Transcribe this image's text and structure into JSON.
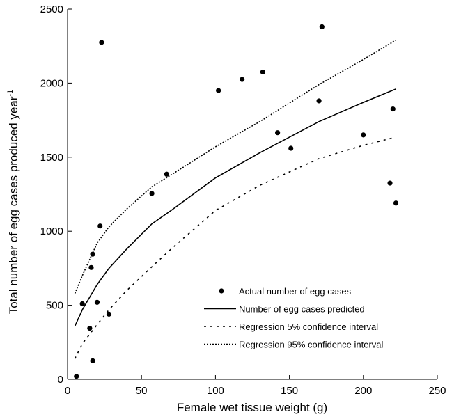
{
  "chart_data": {
    "type": "scatter",
    "xlabel": "Female wet tissue weight (g)",
    "ylabel": "Total number of egg cases produced year",
    "ylabel_superscript": "-1",
    "xlim": [
      0,
      250
    ],
    "xticks": [
      0,
      50,
      100,
      150,
      200,
      250
    ],
    "ylim": [
      0,
      2500
    ],
    "yticks": [
      0,
      500,
      1000,
      1500,
      2000,
      2500
    ],
    "grid": false,
    "legend": "lower right",
    "series": [
      {
        "name": "Actual number of egg cases",
        "color": "#000000",
        "mode": "markers",
        "x": [
          6,
          10,
          15,
          17,
          16,
          17,
          20,
          22,
          23,
          28,
          57,
          67,
          102,
          118,
          132,
          142,
          151,
          170,
          172,
          200,
          218,
          220,
          222
        ],
        "values": [
          20,
          510,
          345,
          125,
          755,
          845,
          520,
          1035,
          2275,
          440,
          1255,
          1385,
          1950,
          2025,
          2075,
          1665,
          1560,
          1880,
          2380,
          1650,
          1325,
          1825,
          1190
        ]
      },
      {
        "name": "Number of egg cases predicted",
        "color": "#000000",
        "mode": "lines",
        "dash": "solid",
        "x": [
          5,
          10,
          20,
          28,
          40,
          57,
          70,
          100,
          130,
          170,
          200,
          222
        ],
        "values": [
          360,
          470,
          640,
          750,
          880,
          1050,
          1140,
          1360,
          1530,
          1740,
          1870,
          1960
        ]
      },
      {
        "name": "Regression 5% confidence interval",
        "color": "#000000",
        "mode": "lines",
        "dash": "dashed",
        "x": [
          5,
          10,
          20,
          28,
          40,
          57,
          70,
          100,
          130,
          170,
          200,
          220
        ],
        "values": [
          140,
          240,
          370,
          470,
          600,
          760,
          880,
          1140,
          1310,
          1490,
          1580,
          1630
        ]
      },
      {
        "name": "Regression 95% confidence interval",
        "color": "#000000",
        "mode": "lines",
        "dash": "dotted",
        "x": [
          5,
          10,
          20,
          28,
          40,
          57,
          70,
          100,
          130,
          170,
          200,
          222
        ],
        "values": [
          580,
          700,
          920,
          1030,
          1150,
          1300,
          1380,
          1570,
          1740,
          1990,
          2160,
          2290
        ]
      }
    ]
  }
}
